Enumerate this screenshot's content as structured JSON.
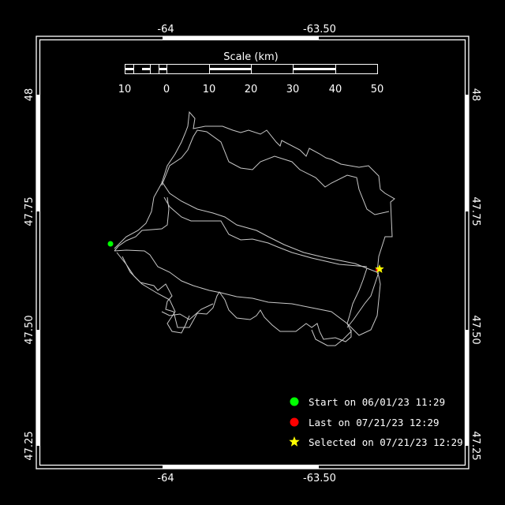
{
  "axes": {
    "top_ticks": [
      "-64",
      "-63.50"
    ],
    "bottom_ticks": [
      "-64",
      "-63.50"
    ],
    "left_ticks": [
      "48",
      "47.75",
      "47.50",
      "47.25"
    ],
    "right_ticks": [
      "48",
      "47.75",
      "47.50",
      "47.25"
    ]
  },
  "scale_bar": {
    "title": "Scale (km)",
    "labels": [
      "10",
      "0",
      "10",
      "20",
      "30",
      "40",
      "50"
    ]
  },
  "legend": {
    "start": {
      "label": "Start on 06/01/23 11:29",
      "color": "#00ff00",
      "icon": "circle"
    },
    "last": {
      "label": "Last on 07/21/23 12:29",
      "color": "#ff0000",
      "icon": "circle"
    },
    "selected": {
      "label": "Selected on 07/21/23 12:29",
      "color": "#ffff00",
      "icon": "star"
    }
  },
  "colors": {
    "background": "#000000",
    "track": "#c8c8c8",
    "frame": "#ffffff"
  }
}
